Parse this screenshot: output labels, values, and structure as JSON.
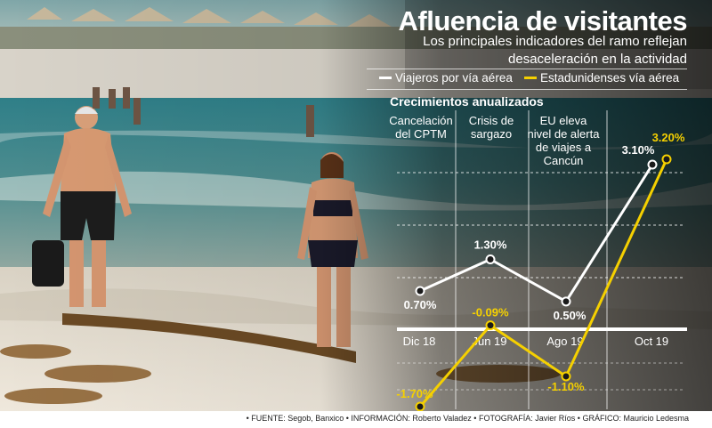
{
  "header": {
    "title": "Afluencia de visitantes",
    "subtitle": "Los principales indicadores del ramo reflejan desaceleración en la actividad"
  },
  "legend": [
    {
      "label": "Viajeros por vía aérea",
      "color": "#ffffff"
    },
    {
      "label": "Estadunidenses vía aérea",
      "color": "#f5d000"
    }
  ],
  "chart_heading": "Crecimientos anualizados",
  "events": [
    {
      "label": "Cancelación del CPTM"
    },
    {
      "label": "Crisis de sargazo"
    },
    {
      "label": "EU eleva nivel de alerta de viajes a Cancún"
    }
  ],
  "chart_data": {
    "type": "line",
    "title": "Crecimientos anualizados",
    "categories": [
      "Dic 18",
      "Jun 19",
      "Ago 19",
      "Oct 19"
    ],
    "series": [
      {
        "name": "Viajeros por vía aérea",
        "values": [
          0.7,
          1.3,
          0.5,
          3.1
        ],
        "labels": [
          "0.70%",
          "1.30%",
          "0.50%",
          "3.10%"
        ],
        "color": "#ffffff"
      },
      {
        "name": "Estadunidenses vía aérea",
        "values": [
          -1.7,
          -0.09,
          -1.1,
          3.2
        ],
        "labels": [
          "-1.70%",
          "-0.09%",
          "-1.10%",
          "3.20%"
        ],
        "color": "#f5d000"
      }
    ],
    "grid": true,
    "legend_position": "top-right"
  },
  "footer": "• FUENTE:  Segob, Banxico • INFORMACIÓN: Roberto Valadez • FOTOGRAFÍA: Javier Ríos • GRÁFICO: Mauricio Ledesma"
}
